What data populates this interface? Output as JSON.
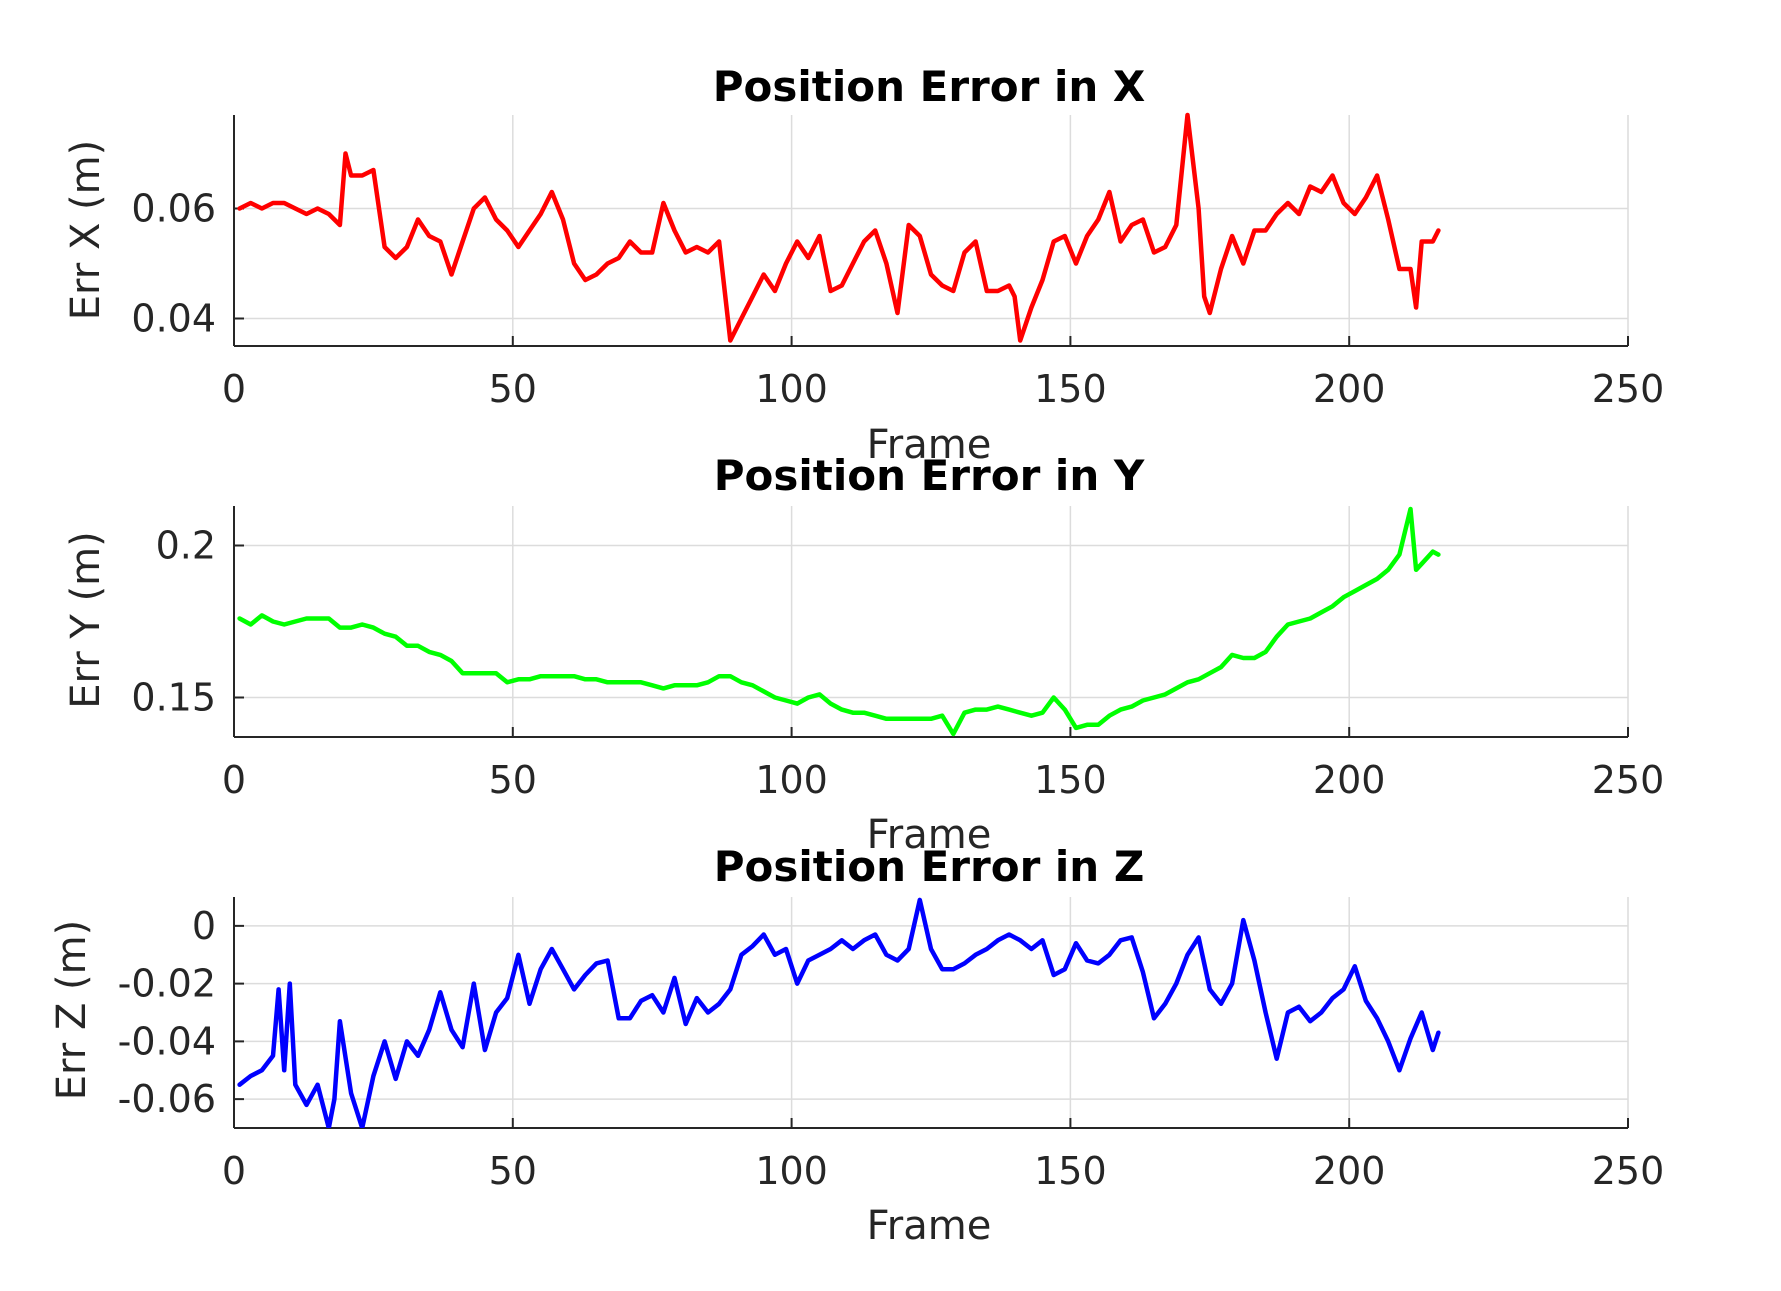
{
  "chart_data": [
    {
      "type": "line",
      "title": "Position Error in X",
      "xlabel": "Frame",
      "ylabel": "Err X (m)",
      "xlim": [
        0,
        250
      ],
      "ylim": [
        0.035,
        0.077
      ],
      "xticks": [
        0,
        50,
        100,
        150,
        200,
        250
      ],
      "xtick_labels": [
        "0",
        "50",
        "100",
        "150",
        "200",
        "250"
      ],
      "yticks": [
        0.04,
        0.06
      ],
      "ytick_labels": [
        "0.04",
        "0.06"
      ],
      "grid": true,
      "color": "#ff0000",
      "series": [
        {
          "x": [
            1,
            3,
            5,
            7,
            9,
            11,
            13,
            15,
            17,
            19,
            20,
            21,
            23,
            25,
            27,
            29,
            31,
            33,
            35,
            37,
            39,
            41,
            43,
            45,
            47,
            49,
            51,
            53,
            55,
            57,
            59,
            61,
            63,
            65,
            67,
            69,
            71,
            73,
            75,
            77,
            79,
            81,
            83,
            85,
            87,
            89,
            91,
            93,
            95,
            97,
            99,
            101,
            103,
            105,
            107,
            109,
            111,
            113,
            115,
            117,
            119,
            121,
            123,
            125,
            127,
            129,
            131,
            133,
            135,
            137,
            139,
            140,
            141,
            143,
            145,
            147,
            149,
            151,
            153,
            155,
            157,
            159,
            161,
            163,
            165,
            167,
            169,
            171,
            173,
            174,
            175,
            177,
            179,
            181,
            183,
            185,
            187,
            189,
            191,
            193,
            195,
            197,
            199,
            201,
            203,
            205,
            207,
            209,
            211,
            212,
            213,
            215,
            216
          ],
          "y": [
            0.06,
            0.061,
            0.06,
            0.061,
            0.061,
            0.06,
            0.059,
            0.06,
            0.059,
            0.057,
            0.07,
            0.066,
            0.066,
            0.067,
            0.053,
            0.051,
            0.053,
            0.058,
            0.055,
            0.054,
            0.048,
            0.054,
            0.06,
            0.062,
            0.058,
            0.056,
            0.053,
            0.056,
            0.059,
            0.063,
            0.058,
            0.05,
            0.047,
            0.048,
            0.05,
            0.051,
            0.054,
            0.052,
            0.052,
            0.061,
            0.056,
            0.052,
            0.053,
            0.052,
            0.054,
            0.036,
            0.04,
            0.044,
            0.048,
            0.045,
            0.05,
            0.054,
            0.051,
            0.055,
            0.045,
            0.046,
            0.05,
            0.054,
            0.056,
            0.05,
            0.041,
            0.057,
            0.055,
            0.048,
            0.046,
            0.045,
            0.052,
            0.054,
            0.045,
            0.045,
            0.046,
            0.044,
            0.036,
            0.042,
            0.047,
            0.054,
            0.055,
            0.05,
            0.055,
            0.058,
            0.063,
            0.054,
            0.057,
            0.058,
            0.052,
            0.053,
            0.057,
            0.077,
            0.06,
            0.044,
            0.041,
            0.049,
            0.055,
            0.05,
            0.056,
            0.056,
            0.059,
            0.061,
            0.059,
            0.064,
            0.063,
            0.066,
            0.061,
            0.059,
            0.062,
            0.066,
            0.058,
            0.049,
            0.049,
            0.042,
            0.054,
            0.054,
            0.056
          ]
        }
      ]
    },
    {
      "type": "line",
      "title": "Position Error in Y",
      "xlabel": "Frame",
      "ylabel": "Err Y (m)",
      "xlim": [
        0,
        250
      ],
      "ylim": [
        0.137,
        0.213
      ],
      "xticks": [
        0,
        50,
        100,
        150,
        200,
        250
      ],
      "xtick_labels": [
        "0",
        "50",
        "100",
        "150",
        "200",
        "250"
      ],
      "yticks": [
        0.15,
        0.2
      ],
      "ytick_labels": [
        "0.15",
        "0.2"
      ],
      "grid": true,
      "color": "#00ff00",
      "series": [
        {
          "x": [
            1,
            3,
            5,
            7,
            9,
            11,
            13,
            15,
            17,
            19,
            21,
            23,
            25,
            27,
            29,
            31,
            33,
            35,
            37,
            39,
            41,
            43,
            45,
            47,
            49,
            51,
            53,
            55,
            57,
            59,
            61,
            63,
            65,
            67,
            69,
            71,
            73,
            75,
            77,
            79,
            81,
            83,
            85,
            87,
            89,
            91,
            93,
            95,
            97,
            99,
            101,
            103,
            105,
            107,
            109,
            111,
            113,
            115,
            117,
            119,
            121,
            123,
            125,
            127,
            129,
            131,
            133,
            135,
            137,
            139,
            141,
            143,
            145,
            147,
            149,
            151,
            153,
            155,
            157,
            159,
            161,
            163,
            165,
            167,
            169,
            171,
            173,
            175,
            177,
            179,
            181,
            183,
            185,
            187,
            189,
            191,
            193,
            195,
            197,
            199,
            201,
            203,
            205,
            207,
            209,
            211,
            212,
            213,
            215,
            216
          ],
          "y": [
            0.176,
            0.174,
            0.177,
            0.175,
            0.174,
            0.175,
            0.176,
            0.176,
            0.176,
            0.173,
            0.173,
            0.174,
            0.173,
            0.171,
            0.17,
            0.167,
            0.167,
            0.165,
            0.164,
            0.162,
            0.158,
            0.158,
            0.158,
            0.158,
            0.155,
            0.156,
            0.156,
            0.157,
            0.157,
            0.157,
            0.157,
            0.156,
            0.156,
            0.155,
            0.155,
            0.155,
            0.155,
            0.154,
            0.153,
            0.154,
            0.154,
            0.154,
            0.155,
            0.157,
            0.157,
            0.155,
            0.154,
            0.152,
            0.15,
            0.149,
            0.148,
            0.15,
            0.151,
            0.148,
            0.146,
            0.145,
            0.145,
            0.144,
            0.143,
            0.143,
            0.143,
            0.143,
            0.143,
            0.144,
            0.138,
            0.145,
            0.146,
            0.146,
            0.147,
            0.146,
            0.145,
            0.144,
            0.145,
            0.15,
            0.146,
            0.14,
            0.141,
            0.141,
            0.144,
            0.146,
            0.147,
            0.149,
            0.15,
            0.151,
            0.153,
            0.155,
            0.156,
            0.158,
            0.16,
            0.164,
            0.163,
            0.163,
            0.165,
            0.17,
            0.174,
            0.175,
            0.176,
            0.178,
            0.18,
            0.183,
            0.185,
            0.187,
            0.189,
            0.192,
            0.197,
            0.212,
            0.192,
            0.194,
            0.198,
            0.197
          ]
        }
      ]
    },
    {
      "type": "line",
      "title": "Position Error in Z",
      "xlabel": "Frame",
      "ylabel": "Err Z (m)",
      "xlim": [
        0,
        250
      ],
      "ylim": [
        -0.07,
        0.01
      ],
      "xticks": [
        0,
        50,
        100,
        150,
        200,
        250
      ],
      "xtick_labels": [
        "0",
        "50",
        "100",
        "150",
        "200",
        "250"
      ],
      "yticks": [
        0,
        -0.02,
        -0.04,
        -0.06
      ],
      "ytick_labels": [
        "0",
        "-0.02",
        "-0.04",
        "-0.06"
      ],
      "grid": true,
      "color": "#0000ff",
      "series": [
        {
          "x": [
            1,
            3,
            5,
            7,
            8,
            9,
            10,
            11,
            13,
            15,
            17,
            18,
            19,
            21,
            23,
            25,
            27,
            29,
            31,
            33,
            35,
            37,
            39,
            41,
            43,
            45,
            47,
            49,
            51,
            53,
            55,
            57,
            59,
            61,
            63,
            65,
            67,
            69,
            71,
            73,
            75,
            77,
            79,
            81,
            83,
            85,
            87,
            89,
            91,
            93,
            95,
            97,
            99,
            101,
            103,
            105,
            107,
            109,
            111,
            113,
            115,
            117,
            119,
            121,
            123,
            125,
            127,
            129,
            131,
            133,
            135,
            137,
            139,
            141,
            143,
            145,
            147,
            149,
            151,
            153,
            155,
            157,
            159,
            161,
            163,
            165,
            167,
            169,
            171,
            173,
            175,
            177,
            179,
            181,
            183,
            185,
            187,
            189,
            191,
            193,
            195,
            197,
            199,
            201,
            203,
            205,
            207,
            209,
            211,
            213,
            215,
            216
          ],
          "y": [
            -0.055,
            -0.052,
            -0.05,
            -0.045,
            -0.022,
            -0.05,
            -0.02,
            -0.055,
            -0.062,
            -0.055,
            -0.07,
            -0.06,
            -0.033,
            -0.058,
            -0.07,
            -0.052,
            -0.04,
            -0.053,
            -0.04,
            -0.045,
            -0.036,
            -0.023,
            -0.036,
            -0.042,
            -0.02,
            -0.043,
            -0.03,
            -0.025,
            -0.01,
            -0.027,
            -0.015,
            -0.008,
            -0.015,
            -0.022,
            -0.017,
            -0.013,
            -0.012,
            -0.032,
            -0.032,
            -0.026,
            -0.024,
            -0.03,
            -0.018,
            -0.034,
            -0.025,
            -0.03,
            -0.027,
            -0.022,
            -0.01,
            -0.007,
            -0.003,
            -0.01,
            -0.008,
            -0.02,
            -0.012,
            -0.01,
            -0.008,
            -0.005,
            -0.008,
            -0.005,
            -0.003,
            -0.01,
            -0.012,
            -0.008,
            0.009,
            -0.008,
            -0.015,
            -0.015,
            -0.013,
            -0.01,
            -0.008,
            -0.005,
            -0.003,
            -0.005,
            -0.008,
            -0.005,
            -0.017,
            -0.015,
            -0.006,
            -0.012,
            -0.013,
            -0.01,
            -0.005,
            -0.004,
            -0.016,
            -0.032,
            -0.027,
            -0.02,
            -0.01,
            -0.004,
            -0.022,
            -0.027,
            -0.02,
            0.002,
            -0.012,
            -0.03,
            -0.046,
            -0.03,
            -0.028,
            -0.033,
            -0.03,
            -0.025,
            -0.022,
            -0.014,
            -0.026,
            -0.032,
            -0.04,
            -0.05,
            -0.039,
            -0.03,
            -0.043,
            -0.037
          ]
        }
      ]
    }
  ]
}
